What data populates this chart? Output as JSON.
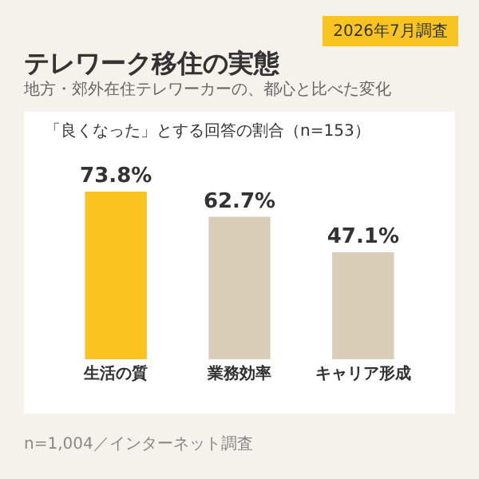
{
  "chart_data": {
    "type": "bar",
    "title": "テレワーク移住の実態",
    "subtitle": "地方・郊外在住テレワーカーの、都心と比べた変化",
    "annotations": [
      "2026年7月調査",
      "「良くなった」とする回答の割合（n=153）",
      "n=1,004／インターネット調査"
    ],
    "categories": [
      "生活の質",
      "業務効率",
      "キャリア形成"
    ],
    "values": [
      73.8,
      62.7,
      47.1
    ],
    "colors": [
      "#f9c41f",
      "#d9cfb8",
      "#d9cfb8"
    ],
    "value_labels": [
      "73.8%",
      "62.7%",
      "47.1%"
    ]
  }
}
